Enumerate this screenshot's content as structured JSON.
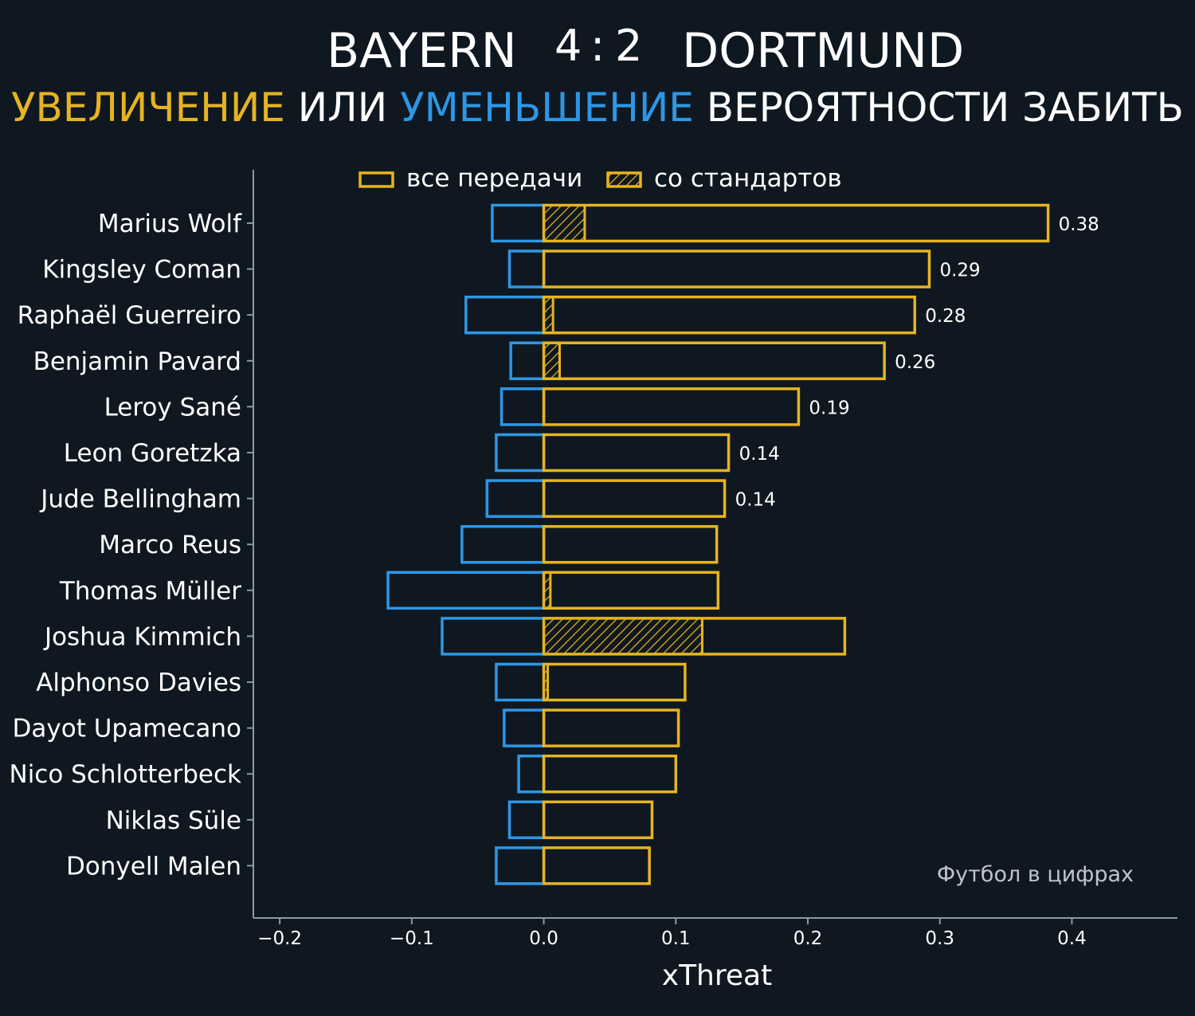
{
  "header": {
    "team_home": "BAYERN",
    "score_home": "4",
    "score_sep": ":",
    "score_away": "2",
    "team_away": "DORTMUND",
    "subtitle_increase": "УВЕЛИЧЕНИЕ",
    "subtitle_or": "ИЛИ",
    "subtitle_decrease": "УМЕНЬШЕНИЕ",
    "subtitle_rest": "ВЕРОЯТНОСТИ ЗАБИТЬ"
  },
  "colors": {
    "background": "#0f1820",
    "positive": "#e6b422",
    "negative": "#2d97e6",
    "axis": "#8a9aa6"
  },
  "legend": {
    "all_passes": "все передачи",
    "set_pieces": "со стандартов"
  },
  "watermark": "Футбол в цифрах",
  "chart_data": {
    "type": "bar",
    "orientation": "horizontal",
    "xlabel": "xThreat",
    "xlim": [
      -0.22,
      0.48
    ],
    "xticks": [
      -0.2,
      -0.1,
      0.0,
      0.1,
      0.2,
      0.3,
      0.4
    ],
    "xtick_labels": [
      "−0.2",
      "−0.1",
      "0.0",
      "0.1",
      "0.2",
      "0.3",
      "0.4"
    ],
    "categories": [
      "Marius Wolf",
      "Kingsley Coman",
      "Raphaël Guerreiro",
      "Benjamin Pavard",
      "Leroy Sané",
      "Leon Goretzka",
      "Jude Bellingham",
      "Marco Reus",
      "Thomas Müller",
      "Joshua Kimmich",
      "Alphonso Davies",
      "Dayot Upamecano",
      "Nico Schlotterbeck",
      "Niklas Süle",
      "Donyell Malen"
    ],
    "series": [
      {
        "name": "все передачи (увеличение)",
        "values": [
          0.382,
          0.292,
          0.281,
          0.258,
          0.193,
          0.14,
          0.137,
          0.131,
          0.132,
          0.228,
          0.107,
          0.102,
          0.1,
          0.082,
          0.08
        ]
      },
      {
        "name": "все передачи (уменьшение)",
        "values": [
          -0.039,
          -0.026,
          -0.059,
          -0.025,
          -0.032,
          -0.036,
          -0.043,
          -0.062,
          -0.118,
          -0.077,
          -0.036,
          -0.03,
          -0.019,
          -0.026,
          -0.036
        ]
      },
      {
        "name": "со стандартов",
        "values": [
          0.031,
          0.0,
          0.007,
          0.012,
          0.0,
          0.0,
          0.0,
          0.0,
          0.005,
          0.12,
          0.003,
          0.0,
          0.0,
          0.0,
          0.0
        ]
      }
    ],
    "data_labels": [
      "0.38",
      "0.29",
      "0.28",
      "0.26",
      "0.19",
      "0.14",
      "0.14",
      "",
      "",
      "",
      "",
      "",
      "",
      "",
      ""
    ]
  }
}
